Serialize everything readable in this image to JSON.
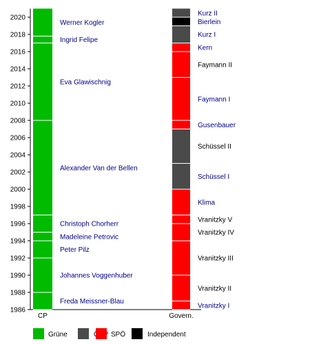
{
  "chart_data": {
    "type": "timeline",
    "y_axis": {
      "ticks": [
        1986,
        1988,
        1990,
        1992,
        1994,
        1996,
        1998,
        2000,
        2002,
        2004,
        2006,
        2008,
        2010,
        2012,
        2014,
        2016,
        2018,
        2020
      ],
      "range": [
        1986,
        2021
      ]
    },
    "columns": [
      {
        "label": "CP"
      },
      {
        "label": "Govern."
      }
    ],
    "leaders": [
      {
        "name": "Freda Meissner-Blau",
        "start": 1986.0,
        "end": 1988.0,
        "party": "Grüne"
      },
      {
        "name": "Johannes Voggenhuber",
        "start": 1988.0,
        "end": 1992.0,
        "party": "Grüne"
      },
      {
        "name": "Peter Pilz",
        "start": 1992.0,
        "end": 1994.0,
        "party": "Grüne"
      },
      {
        "name": "Madeleine Petrovic",
        "start": 1994.0,
        "end": 1995.0,
        "party": "Grüne"
      },
      {
        "name": "Christoph Chorherr",
        "start": 1995.0,
        "end": 1997.0,
        "party": "Grüne"
      },
      {
        "name": "Alexander Van der Bellen",
        "start": 1997.0,
        "end": 2008.0,
        "party": "Grüne"
      },
      {
        "name": "Eva Glawischnig",
        "start": 2008.0,
        "end": 2017.0,
        "party": "Grüne"
      },
      {
        "name": "Ingrid Felipe",
        "start": 2017.0,
        "end": 2017.8,
        "party": "Grüne"
      },
      {
        "name": "Werner Kogler",
        "start": 2017.8,
        "end": 2021.0,
        "party": "Grüne"
      }
    ],
    "governments": [
      {
        "name": "Vranitzky I",
        "start": 1986.0,
        "end": 1987.0,
        "party": "SPÖ"
      },
      {
        "name": "Vranitzky II",
        "start": 1987.0,
        "end": 1990.0,
        "party": "SPÖ"
      },
      {
        "name": "Vranitzky III",
        "start": 1990.0,
        "end": 1994.0,
        "party": "SPÖ"
      },
      {
        "name": "Vranitzky IV",
        "start": 1994.0,
        "end": 1996.0,
        "party": "SPÖ"
      },
      {
        "name": "Vranitzky V",
        "start": 1996.0,
        "end": 1997.0,
        "party": "SPÖ"
      },
      {
        "name": "Klima",
        "start": 1997.0,
        "end": 2000.0,
        "party": "SPÖ"
      },
      {
        "name": "Schüssel I",
        "start": 2000.0,
        "end": 2003.0,
        "party": "ÖVP"
      },
      {
        "name": "Schüssel II",
        "start": 2003.0,
        "end": 2007.0,
        "party": "ÖVP"
      },
      {
        "name": "Gusenbauer",
        "start": 2007.0,
        "end": 2008.0,
        "party": "SPÖ"
      },
      {
        "name": "Faymann I",
        "start": 2008.0,
        "end": 2013.0,
        "party": "SPÖ"
      },
      {
        "name": "Faymann II",
        "start": 2013.0,
        "end": 2016.0,
        "party": "SPÖ"
      },
      {
        "name": "Kern",
        "start": 2016.0,
        "end": 2017.0,
        "party": "SPÖ"
      },
      {
        "name": "Kurz I",
        "start": 2017.0,
        "end": 2019.0,
        "party": "ÖVP"
      },
      {
        "name": "Bierlein",
        "start": 2019.0,
        "end": 2020.0,
        "party": "Independent"
      },
      {
        "name": "Kurz II",
        "start": 2020.0,
        "end": 2021.0,
        "party": "ÖVP"
      }
    ],
    "legend": [
      {
        "label": "Grüne",
        "color": "#00bb00"
      },
      {
        "label": "ÖVP",
        "color": "#4a4a4a"
      },
      {
        "label": "SPÖ",
        "color": "#ff0000"
      },
      {
        "label": "Independent",
        "color": "#000000"
      }
    ],
    "colors": {
      "Grüne": "#00bb00",
      "ÖVP": "#4a4a4a",
      "SPÖ": "#ff0000",
      "Independent": "#000000",
      "label_link": "#00008b",
      "label_plain": "#000000"
    },
    "plain_labels": [
      "Faymann II",
      "Schüssel II",
      "Vranitzky V",
      "Vranitzky IV",
      "Vranitzky III",
      "Vranitzky II"
    ]
  }
}
